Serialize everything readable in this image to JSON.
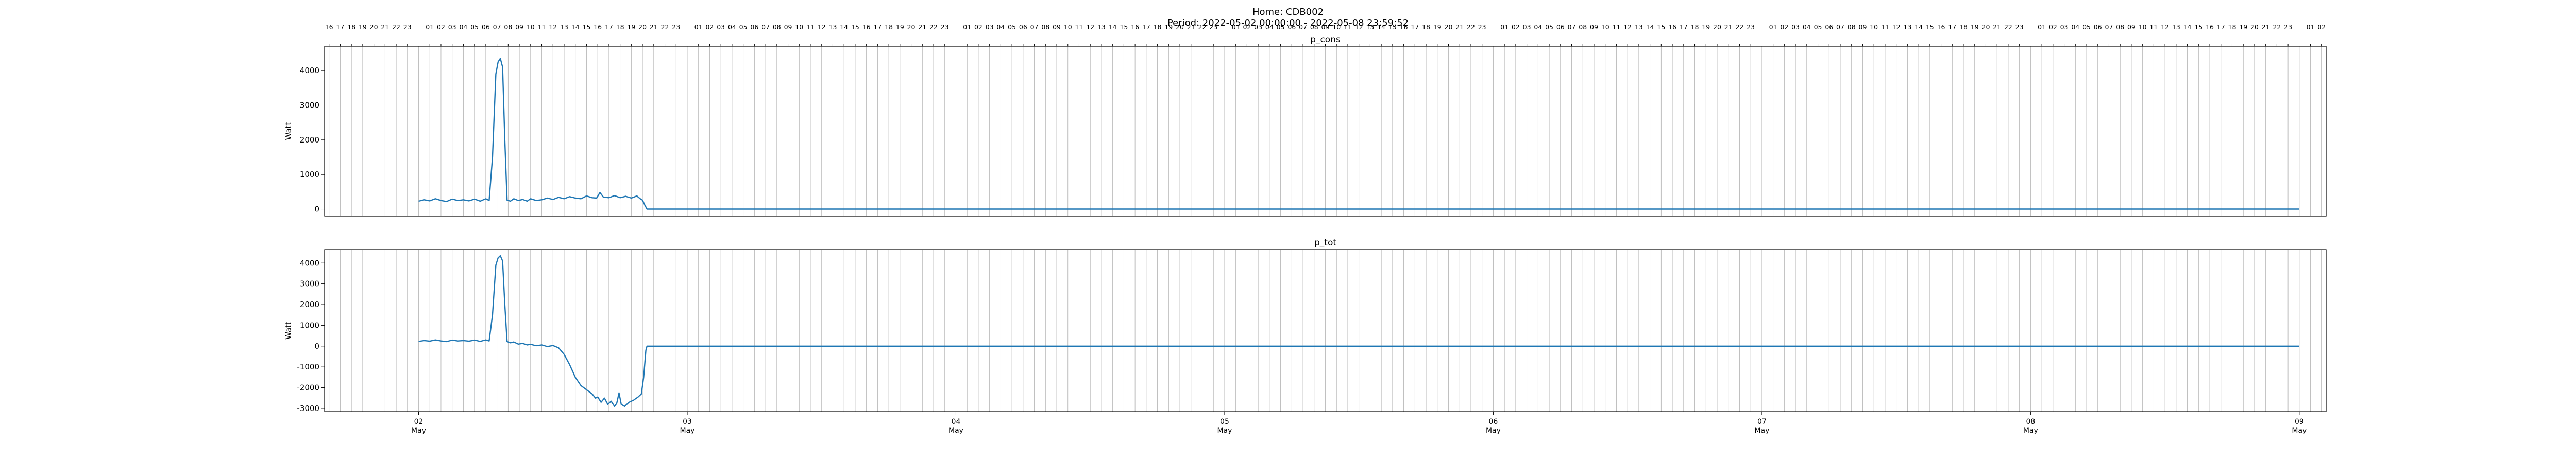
{
  "figure": {
    "home_label": "Home: CDB002",
    "period_label": "Period: 2022-05-02 00:00:00 - 2022-05-08 23:59:52"
  },
  "chart_data": [
    {
      "type": "line",
      "title": "p_cons",
      "xlabel": "",
      "ylabel": "Watt",
      "x_unit": "hours since 2022-05-02 00:00",
      "xlim": [
        -8.4,
        170.4
      ],
      "ylim": [
        -200,
        4700
      ],
      "yticks": [
        0,
        1000,
        2000,
        3000,
        4000
      ],
      "grid": "vertical hourly lines",
      "top_hour_tick_labels": true,
      "series": [
        {
          "color": "#1f77b4",
          "points": [
            [
              0,
              230
            ],
            [
              0.5,
              270
            ],
            [
              1,
              240
            ],
            [
              1.5,
              300
            ],
            [
              2,
              250
            ],
            [
              2.5,
              220
            ],
            [
              3,
              290
            ],
            [
              3.5,
              250
            ],
            [
              4,
              270
            ],
            [
              4.5,
              240
            ],
            [
              5,
              290
            ],
            [
              5.5,
              230
            ],
            [
              6,
              300
            ],
            [
              6.3,
              250
            ],
            [
              6.6,
              1500
            ],
            [
              6.9,
              3900
            ],
            [
              7.1,
              4250
            ],
            [
              7.3,
              4350
            ],
            [
              7.5,
              4100
            ],
            [
              7.7,
              2000
            ],
            [
              7.9,
              260
            ],
            [
              8.2,
              230
            ],
            [
              8.5,
              300
            ],
            [
              8.9,
              250
            ],
            [
              9.3,
              280
            ],
            [
              9.7,
              230
            ],
            [
              10,
              300
            ],
            [
              10.5,
              250
            ],
            [
              11,
              270
            ],
            [
              11.5,
              320
            ],
            [
              12,
              280
            ],
            [
              12.5,
              340
            ],
            [
              13,
              300
            ],
            [
              13.5,
              360
            ],
            [
              14,
              320
            ],
            [
              14.5,
              300
            ],
            [
              15,
              380
            ],
            [
              15.5,
              330
            ],
            [
              15.9,
              320
            ],
            [
              16.2,
              480
            ],
            [
              16.5,
              350
            ],
            [
              17,
              330
            ],
            [
              17.5,
              390
            ],
            [
              18,
              330
            ],
            [
              18.5,
              370
            ],
            [
              19,
              320
            ],
            [
              19.5,
              380
            ],
            [
              19.8,
              300
            ],
            [
              20,
              260
            ],
            [
              20.2,
              120
            ],
            [
              20.4,
              0
            ],
            [
              168,
              0
            ]
          ]
        }
      ]
    },
    {
      "type": "line",
      "title": "p_tot",
      "xlabel": "",
      "ylabel": "Watt",
      "x_unit": "hours since 2022-05-02 00:00",
      "xlim": [
        -8.4,
        170.4
      ],
      "ylim": [
        -3150,
        4650
      ],
      "yticks": [
        -3000,
        -2000,
        -1000,
        0,
        1000,
        2000,
        3000,
        4000
      ],
      "grid": "vertical hourly lines",
      "bottom_day_tick_labels": [
        "02",
        "03",
        "04",
        "05",
        "06",
        "07",
        "08",
        "09"
      ],
      "bottom_month_label": "May",
      "series": [
        {
          "color": "#1f77b4",
          "points": [
            [
              0,
              230
            ],
            [
              0.5,
              270
            ],
            [
              1,
              240
            ],
            [
              1.5,
              300
            ],
            [
              2,
              250
            ],
            [
              2.5,
              220
            ],
            [
              3,
              290
            ],
            [
              3.5,
              250
            ],
            [
              4,
              270
            ],
            [
              4.5,
              240
            ],
            [
              5,
              290
            ],
            [
              5.5,
              230
            ],
            [
              6,
              300
            ],
            [
              6.3,
              250
            ],
            [
              6.6,
              1500
            ],
            [
              6.9,
              3900
            ],
            [
              7.1,
              4250
            ],
            [
              7.3,
              4350
            ],
            [
              7.5,
              4100
            ],
            [
              7.7,
              2000
            ],
            [
              7.9,
              220
            ],
            [
              8.2,
              160
            ],
            [
              8.5,
              200
            ],
            [
              8.9,
              100
            ],
            [
              9.3,
              130
            ],
            [
              9.7,
              60
            ],
            [
              10,
              90
            ],
            [
              10.5,
              20
            ],
            [
              11,
              60
            ],
            [
              11.5,
              -20
            ],
            [
              12,
              30
            ],
            [
              12.5,
              -80
            ],
            [
              13,
              -400
            ],
            [
              13.5,
              -900
            ],
            [
              14,
              -1500
            ],
            [
              14.5,
              -1900
            ],
            [
              15,
              -2100
            ],
            [
              15.5,
              -2300
            ],
            [
              15.8,
              -2500
            ],
            [
              16,
              -2450
            ],
            [
              16.3,
              -2700
            ],
            [
              16.6,
              -2500
            ],
            [
              16.9,
              -2800
            ],
            [
              17.2,
              -2650
            ],
            [
              17.5,
              -2900
            ],
            [
              17.7,
              -2750
            ],
            [
              17.9,
              -2250
            ],
            [
              18.1,
              -2800
            ],
            [
              18.4,
              -2900
            ],
            [
              18.8,
              -2700
            ],
            [
              19.2,
              -2600
            ],
            [
              19.6,
              -2450
            ],
            [
              19.9,
              -2300
            ],
            [
              20.1,
              -1500
            ],
            [
              20.3,
              -200
            ],
            [
              20.4,
              0
            ],
            [
              168,
              0
            ]
          ]
        }
      ]
    }
  ]
}
